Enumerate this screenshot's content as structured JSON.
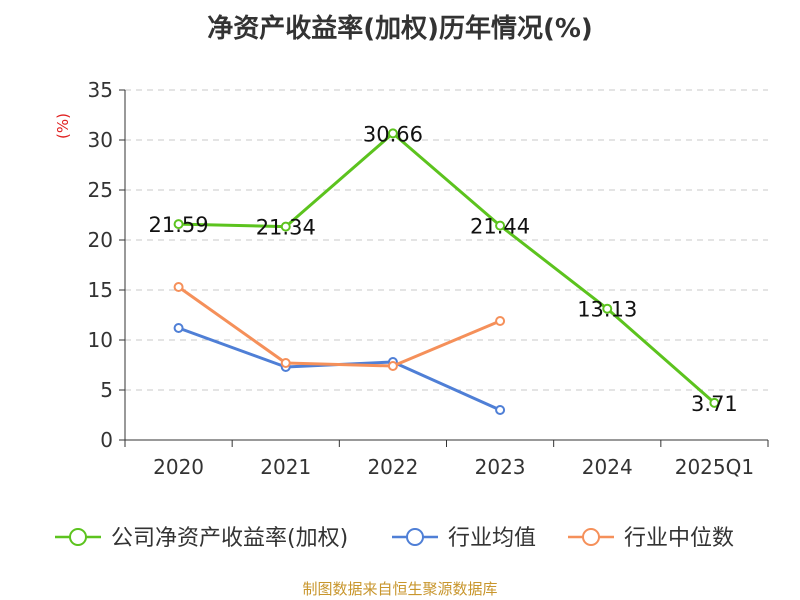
{
  "chart_data": {
    "type": "line",
    "title": "净资产收益率(加权)历年情况(%)",
    "ylabel": "(%)",
    "xlabel": "",
    "categories": [
      "2020",
      "2021",
      "2022",
      "2023",
      "2024",
      "2025Q1"
    ],
    "ylim": [
      0,
      35
    ],
    "yticks": [
      0,
      5,
      10,
      15,
      20,
      25,
      30,
      35
    ],
    "grid": "horizontal dashed",
    "legend_position": "bottom",
    "series": [
      {
        "name": "公司净资产收益率(加权)",
        "color": "#5cc31e",
        "values": [
          21.59,
          21.34,
          30.66,
          21.44,
          13.13,
          3.71
        ],
        "data_labels": [
          "21.59",
          "21.34",
          "30.66",
          "21.44",
          "13.13",
          "3.71"
        ]
      },
      {
        "name": "行业均值",
        "color": "#4f7fd6",
        "values": [
          11.2,
          7.3,
          7.8,
          3.0,
          null,
          null
        ]
      },
      {
        "name": "行业中位数",
        "color": "#f5905a",
        "values": [
          15.3,
          7.7,
          7.4,
          11.9,
          null,
          null
        ]
      }
    ]
  },
  "source_note": "制图数据来自恒生聚源数据库"
}
